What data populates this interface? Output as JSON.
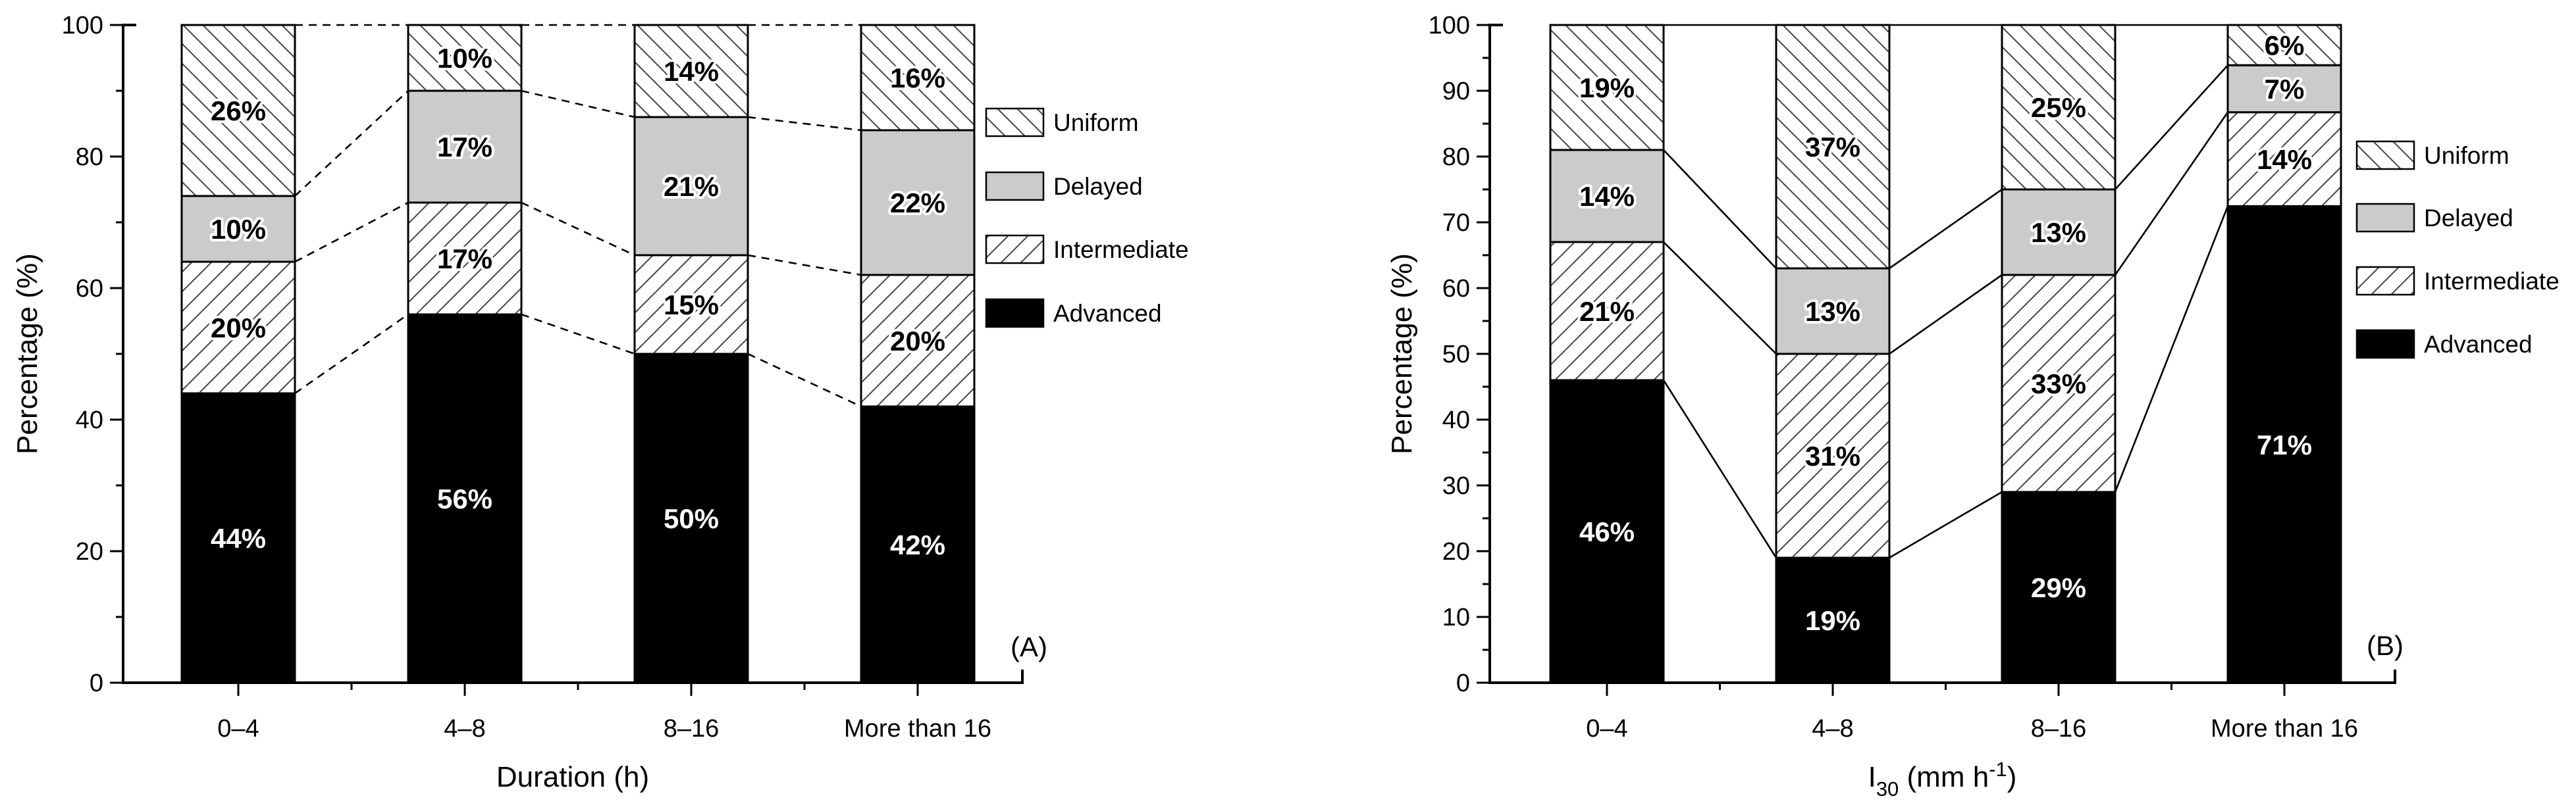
{
  "page": {
    "background": "#ffffff"
  },
  "colors": {
    "bar_black": "#000000",
    "bar_gray": "#cbcbcb",
    "hatch_line": "#444444",
    "axis": "#000000",
    "text": "#000000",
    "label_halo": "#ffffff"
  },
  "chart_data": [
    {
      "panel_id": "a",
      "panel_label": "(A)",
      "type": "bar",
      "stacked": true,
      "grid": false,
      "legend_position": "right",
      "xlabel": "Duration (h)",
      "xlabel_parts": [
        {
          "text": "Duration (h)"
        }
      ],
      "ylabel": "Percentage (%)",
      "ylim": [
        0,
        100
      ],
      "ytick_labels": [
        "0",
        "20",
        "40",
        "60",
        "80",
        "100"
      ],
      "ytick_minor_step": 10,
      "categories": [
        "0–4",
        "4–8",
        "8–16",
        "More than 16"
      ],
      "connector_style": "dashed",
      "series": [
        {
          "name": "Advanced",
          "swatch": "black",
          "values": [
            44,
            56,
            50,
            42
          ],
          "labels": [
            "44%",
            "56%",
            "50%",
            "42%"
          ]
        },
        {
          "name": "Intermediate",
          "swatch": "hatch-forward",
          "values": [
            20,
            17,
            15,
            20
          ],
          "labels": [
            "20%",
            "17%",
            "15%",
            "20%"
          ]
        },
        {
          "name": "Delayed",
          "swatch": "gray",
          "values": [
            10,
            17,
            21,
            22
          ],
          "labels": [
            "10%",
            "17%",
            "21%",
            "22%"
          ]
        },
        {
          "name": "Uniform",
          "swatch": "hatch-back",
          "values": [
            26,
            10,
            14,
            16
          ],
          "labels": [
            "26%",
            "10%",
            "14%",
            "16%"
          ]
        }
      ],
      "legend": [
        {
          "label": "Uniform",
          "swatch": "hatch-back"
        },
        {
          "label": "Delayed",
          "swatch": "gray"
        },
        {
          "label": "Intermediate",
          "swatch": "hatch-forward"
        },
        {
          "label": "Advanced",
          "swatch": "black"
        }
      ]
    },
    {
      "panel_id": "b",
      "panel_label": "(B)",
      "type": "bar",
      "stacked": true,
      "grid": false,
      "legend_position": "right",
      "xlabel": "I30 (mm h-1)",
      "xlabel_parts": [
        {
          "text": "I"
        },
        {
          "text": "30",
          "style": "sub"
        },
        {
          "text": " (mm h"
        },
        {
          "text": "-1",
          "style": "sup"
        },
        {
          "text": ")"
        }
      ],
      "ylabel": "Percentage (%)",
      "ylim": [
        0,
        100
      ],
      "ytick_labels": [
        "0",
        "10",
        "20",
        "30",
        "40",
        "50",
        "60",
        "70",
        "80",
        "90",
        "100"
      ],
      "ytick_minor_step": 5,
      "categories": [
        "0–4",
        "4–8",
        "8–16",
        "More than 16"
      ],
      "connector_style": "solid",
      "series": [
        {
          "name": "Advanced",
          "swatch": "black",
          "values": [
            46,
            19,
            29,
            71
          ],
          "labels": [
            "46%",
            "19%",
            "29%",
            "71%"
          ]
        },
        {
          "name": "Intermediate",
          "swatch": "hatch-forward",
          "values": [
            21,
            31,
            33,
            14
          ],
          "labels": [
            "21%",
            "31%",
            "33%",
            "14%"
          ]
        },
        {
          "name": "Delayed",
          "swatch": "gray",
          "values": [
            14,
            13,
            13,
            7
          ],
          "labels": [
            "14%",
            "13%",
            "13%",
            "7%"
          ]
        },
        {
          "name": "Uniform",
          "swatch": "hatch-back",
          "values": [
            19,
            37,
            25,
            6
          ],
          "labels": [
            "19%",
            "37%",
            "25%",
            "6%"
          ]
        }
      ],
      "legend": [
        {
          "label": "Uniform",
          "swatch": "hatch-back"
        },
        {
          "label": "Delayed",
          "swatch": "gray"
        },
        {
          "label": "Intermediate",
          "swatch": "hatch-forward"
        },
        {
          "label": "Advanced",
          "swatch": "black"
        }
      ]
    }
  ]
}
